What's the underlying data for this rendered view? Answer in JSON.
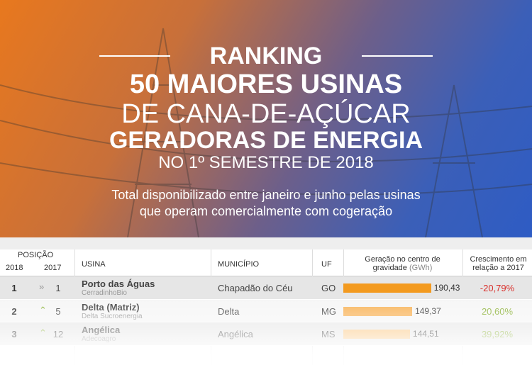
{
  "header": {
    "title_lines": [
      "RANKING",
      "50 MAIORES USINAS",
      "DE CANA-DE-AÇÚCAR",
      "GERADORAS DE ENERGIA",
      "NO 1º SEMESTRE DE 2018"
    ],
    "subtitle": "Total disponibilizado entre janeiro e junho pelas usinas que operam comercialmente com cogeração"
  },
  "table": {
    "columns": {
      "position": "POSIÇÃO",
      "year_2018": "2018",
      "year_2017": "2017",
      "plant": "USINA",
      "city": "MUNICÍPIO",
      "state": "UF",
      "generation": "Geração no centro de gravidade",
      "generation_unit": "(GWh)",
      "growth": "Crescimento em relação a 2017"
    },
    "rows": [
      {
        "rank_2018": 1,
        "rank_2017": 1,
        "plant": "Porto das Águas",
        "company": "CerradinhoBio",
        "city": "Chapadão do Céu",
        "state": "GO",
        "generation": {
          "value": 190.43,
          "label": "190,43"
        },
        "growth": "-20,79%"
      },
      {
        "rank_2018": 2,
        "rank_2017": 5,
        "plant": "Delta (Matriz)",
        "company": "Delta Sucroenergia",
        "city": "Delta",
        "state": "MG",
        "generation": {
          "value": 149.37,
          "label": "149,37"
        },
        "growth": "20,60%"
      },
      {
        "rank_2018": 3,
        "rank_2017": 12,
        "plant": "Angélica",
        "company": "Adecoagro",
        "city": "Angélica",
        "state": "MS",
        "generation": {
          "value": 144.51,
          "label": "144,51"
        },
        "growth": "39,92%"
      }
    ]
  }
}
